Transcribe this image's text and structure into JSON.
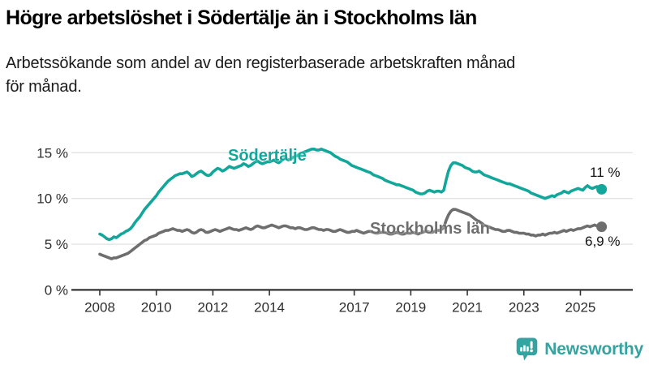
{
  "chart_data": {
    "type": "line",
    "title": "Högre arbetslöshet i Södertälje än i Stockholms län",
    "subtitle_lines": [
      "Arbetssökande som andel av den registerbaserade arbetskraften månad",
      "för månad."
    ],
    "unit": "%",
    "grid": true,
    "x_range": [
      2008.0,
      2025.75
    ],
    "ylim": [
      0,
      16.5
    ],
    "x_ticks": [
      {
        "year": 2008,
        "label": "2008"
      },
      {
        "year": 2010,
        "label": "2010"
      },
      {
        "year": 2012,
        "label": "2012"
      },
      {
        "year": 2014,
        "label": "2014"
      },
      {
        "year": 2017,
        "label": "2017"
      },
      {
        "year": 2019,
        "label": "2019"
      },
      {
        "year": 2021,
        "label": "2021"
      },
      {
        "year": 2023,
        "label": "2023"
      },
      {
        "year": 2025,
        "label": "2025"
      }
    ],
    "y_ticks": [
      {
        "value": 0,
        "label": "0 %"
      },
      {
        "value": 5,
        "label": "5 %"
      },
      {
        "value": 10,
        "label": "10 %"
      },
      {
        "value": 15,
        "label": "15 %"
      }
    ],
    "series": [
      {
        "name": "Södertälje",
        "color": "#12a79a",
        "end_label": "11 %",
        "end_value": 11.0,
        "values": [
          6.1,
          6.0,
          5.8,
          5.6,
          5.5,
          5.6,
          5.8,
          5.7,
          5.9,
          6.1,
          6.2,
          6.4,
          6.5,
          6.7,
          7.0,
          7.4,
          7.7,
          8.0,
          8.4,
          8.8,
          9.1,
          9.4,
          9.7,
          10.0,
          10.3,
          10.7,
          11.0,
          11.3,
          11.6,
          11.9,
          12.1,
          12.3,
          12.5,
          12.6,
          12.7,
          12.7,
          12.8,
          12.9,
          12.7,
          12.4,
          12.5,
          12.7,
          12.9,
          13.0,
          12.8,
          12.6,
          12.5,
          12.6,
          12.9,
          13.1,
          13.3,
          13.2,
          13.0,
          13.1,
          13.3,
          13.5,
          13.4,
          13.3,
          13.4,
          13.5,
          13.6,
          13.8,
          13.7,
          13.5,
          13.6,
          13.8,
          14.0,
          14.1,
          13.9,
          13.8,
          13.9,
          14.0,
          14.0,
          14.1,
          14.2,
          14.0,
          13.9,
          14.1,
          14.3,
          14.4,
          14.2,
          14.3,
          14.5,
          14.6,
          14.7,
          14.9,
          15.0,
          15.1,
          15.2,
          15.3,
          15.4,
          15.4,
          15.3,
          15.3,
          15.4,
          15.3,
          15.2,
          15.1,
          15.0,
          14.8,
          14.6,
          14.5,
          14.3,
          14.2,
          14.1,
          14.0,
          13.8,
          13.6,
          13.5,
          13.4,
          13.3,
          13.2,
          13.1,
          13.0,
          12.9,
          12.8,
          12.6,
          12.5,
          12.4,
          12.3,
          12.2,
          12.0,
          11.9,
          11.8,
          11.7,
          11.6,
          11.5,
          11.5,
          11.4,
          11.3,
          11.2,
          11.1,
          11.0,
          10.9,
          10.7,
          10.6,
          10.5,
          10.5,
          10.6,
          10.8,
          10.9,
          10.8,
          10.7,
          10.8,
          10.8,
          10.7,
          10.9,
          12.0,
          13.0,
          13.6,
          13.9,
          13.9,
          13.8,
          13.7,
          13.6,
          13.4,
          13.3,
          13.2,
          13.0,
          12.9,
          12.9,
          13.0,
          12.8,
          12.6,
          12.5,
          12.4,
          12.3,
          12.2,
          12.1,
          12.0,
          11.9,
          11.8,
          11.7,
          11.6,
          11.6,
          11.5,
          11.4,
          11.3,
          11.2,
          11.1,
          11.0,
          10.9,
          10.8,
          10.6,
          10.5,
          10.4,
          10.3,
          10.2,
          10.1,
          10.0,
          10.1,
          10.2,
          10.3,
          10.2,
          10.4,
          10.5,
          10.6,
          10.8,
          10.7,
          10.6,
          10.8,
          10.9,
          11.0,
          11.1,
          11.0,
          10.9,
          11.2,
          11.4,
          11.2,
          11.1,
          11.2,
          11.3,
          11.1,
          11.0
        ]
      },
      {
        "name": "Stockholms län",
        "color": "#6e6e6e",
        "end_label": "6,9 %",
        "end_value": 6.9,
        "values": [
          3.9,
          3.8,
          3.7,
          3.6,
          3.5,
          3.4,
          3.5,
          3.5,
          3.6,
          3.7,
          3.8,
          3.9,
          4.0,
          4.2,
          4.4,
          4.6,
          4.8,
          5.0,
          5.2,
          5.4,
          5.5,
          5.7,
          5.8,
          5.9,
          6.0,
          6.2,
          6.3,
          6.4,
          6.5,
          6.5,
          6.6,
          6.7,
          6.6,
          6.5,
          6.5,
          6.4,
          6.5,
          6.6,
          6.5,
          6.3,
          6.2,
          6.3,
          6.5,
          6.6,
          6.5,
          6.3,
          6.3,
          6.4,
          6.5,
          6.6,
          6.5,
          6.4,
          6.5,
          6.6,
          6.7,
          6.8,
          6.7,
          6.6,
          6.6,
          6.5,
          6.6,
          6.7,
          6.8,
          6.7,
          6.6,
          6.7,
          6.9,
          7.0,
          6.9,
          6.8,
          6.8,
          6.9,
          7.0,
          7.1,
          7.0,
          6.9,
          6.8,
          6.9,
          7.0,
          7.0,
          6.9,
          6.8,
          6.8,
          6.7,
          6.8,
          6.8,
          6.7,
          6.6,
          6.6,
          6.7,
          6.8,
          6.8,
          6.7,
          6.6,
          6.6,
          6.5,
          6.6,
          6.6,
          6.5,
          6.4,
          6.4,
          6.5,
          6.6,
          6.5,
          6.4,
          6.3,
          6.3,
          6.4,
          6.4,
          6.5,
          6.4,
          6.3,
          6.2,
          6.3,
          6.4,
          6.4,
          6.3,
          6.2,
          6.2,
          6.3,
          6.3,
          6.3,
          6.2,
          6.1,
          6.1,
          6.2,
          6.3,
          6.2,
          6.1,
          6.1,
          6.2,
          6.2,
          6.2,
          6.3,
          6.2,
          6.1,
          6.2,
          6.3,
          6.4,
          6.4,
          6.3,
          6.3,
          6.4,
          6.5,
          6.5,
          6.6,
          6.8,
          7.6,
          8.2,
          8.6,
          8.8,
          8.8,
          8.7,
          8.6,
          8.5,
          8.4,
          8.3,
          8.2,
          8.0,
          7.8,
          7.6,
          7.5,
          7.3,
          7.1,
          7.0,
          6.9,
          6.8,
          6.7,
          6.6,
          6.6,
          6.5,
          6.4,
          6.4,
          6.5,
          6.5,
          6.4,
          6.3,
          6.3,
          6.2,
          6.2,
          6.2,
          6.1,
          6.1,
          6.0,
          6.0,
          5.9,
          6.0,
          6.0,
          6.1,
          6.0,
          6.1,
          6.2,
          6.2,
          6.3,
          6.2,
          6.3,
          6.4,
          6.5,
          6.4,
          6.5,
          6.6,
          6.5,
          6.6,
          6.7,
          6.7,
          6.8,
          6.9,
          7.0,
          6.9,
          7.0,
          7.1,
          7.0,
          6.9,
          6.9
        ]
      }
    ],
    "axis_color": "#333333",
    "gridline_color": "#e3e3e3"
  },
  "footer": {
    "brand": "Newsworthy",
    "brand_color": "#35a39f",
    "icon": "newsworthy-speech-bubble-bar-chart-icon"
  }
}
